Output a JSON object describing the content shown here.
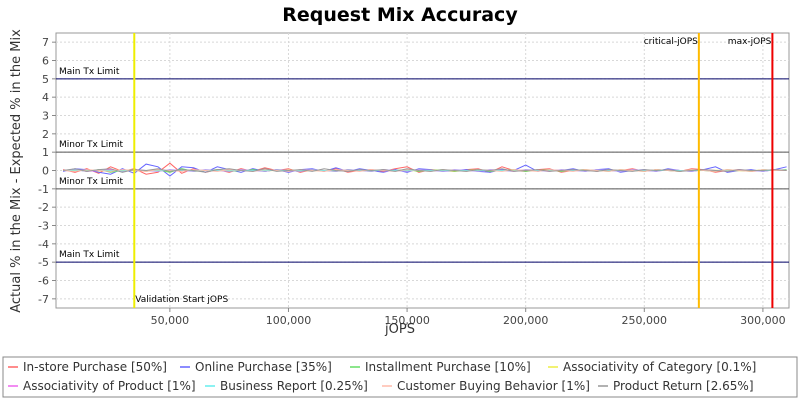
{
  "chart_data": {
    "type": "line",
    "title": "Request Mix Accuracy",
    "xlabel": "jOPS",
    "ylabel": "Actual % in the Mix - Expected % in the Mix",
    "xlim": [
      2000,
      311000
    ],
    "ylim": [
      -7.5,
      7.5
    ],
    "x_ticks": [
      50000,
      100000,
      150000,
      200000,
      250000,
      300000
    ],
    "x_tick_labels": [
      "50,000",
      "100,000",
      "150,000",
      "200,000",
      "250,000",
      "300,000"
    ],
    "y_ticks": [
      -7,
      -6,
      -5,
      -4,
      -3,
      -2,
      -1,
      0,
      1,
      2,
      3,
      4,
      5,
      6,
      7
    ],
    "y_tick_labels": [
      "-7",
      "-6",
      "-5",
      "-4",
      "-3",
      "-2",
      "-1",
      "0",
      "1",
      "2",
      "3",
      "4",
      "5",
      "6",
      "7"
    ],
    "grid": true,
    "legend_position": "bottom",
    "x": [
      5000,
      10000,
      15000,
      20000,
      25000,
      30000,
      35000,
      40000,
      45000,
      50000,
      55000,
      60000,
      65000,
      70000,
      75000,
      80000,
      85000,
      90000,
      95000,
      100000,
      105000,
      110000,
      115000,
      120000,
      125000,
      130000,
      135000,
      140000,
      145000,
      150000,
      155000,
      160000,
      165000,
      170000,
      175000,
      180000,
      185000,
      190000,
      195000,
      200000,
      205000,
      210000,
      215000,
      220000,
      225000,
      230000,
      235000,
      240000,
      245000,
      250000,
      255000,
      260000,
      265000,
      270000,
      275000,
      280000,
      285000,
      290000,
      295000,
      300000,
      305000,
      310000
    ],
    "series": [
      {
        "name": "In-store Purchase [50%]",
        "color": "#ff6666",
        "values": [
          0.05,
          -0.1,
          0.1,
          -0.15,
          0.2,
          -0.05,
          0.1,
          -0.2,
          -0.1,
          0.4,
          -0.15,
          0.1,
          -0.1,
          0.05,
          -0.1,
          0.1,
          -0.05,
          0.15,
          0.0,
          0.1,
          -0.1,
          0.05,
          -0.05,
          0.1,
          -0.1,
          0.0,
          0.05,
          -0.05,
          0.1,
          0.2,
          -0.1,
          0.05,
          0.0,
          -0.05,
          0.05,
          0.1,
          -0.1,
          0.2,
          0.0,
          -0.05,
          0.05,
          0.1,
          -0.1,
          0.0,
          0.05,
          -0.05,
          0.05,
          0.0,
          0.1,
          -0.05,
          0.05,
          0.0,
          -0.05,
          0.1,
          0.05,
          -0.1,
          0.0,
          0.05,
          -0.05,
          0.0,
          0.05,
          0.0
        ]
      },
      {
        "name": "Online Purchase [35%]",
        "color": "#6666ff",
        "values": [
          -0.05,
          0.1,
          0.05,
          -0.1,
          -0.2,
          0.1,
          -0.15,
          0.35,
          0.2,
          -0.3,
          0.2,
          0.15,
          -0.1,
          0.2,
          0.05,
          -0.1,
          0.1,
          -0.05,
          0.05,
          -0.1,
          0.05,
          0.1,
          -0.05,
          0.15,
          -0.05,
          0.1,
          0.0,
          -0.1,
          0.05,
          -0.1,
          0.1,
          0.05,
          -0.05,
          0.0,
          0.05,
          -0.05,
          -0.1,
          0.05,
          0.0,
          0.3,
          -0.05,
          0.05,
          0.0,
          0.1,
          -0.05,
          0.05,
          0.1,
          -0.1,
          0.0,
          0.05,
          -0.05,
          0.1,
          0.0,
          -0.05,
          0.05,
          0.2,
          -0.1,
          0.0,
          0.05,
          -0.05,
          0.05,
          0.2
        ]
      },
      {
        "name": "Installment Purchase [10%]",
        "color": "#66dd66",
        "values": [
          0.0,
          0.05,
          -0.05,
          0.05,
          -0.1,
          0.0,
          0.05,
          -0.05,
          0.05,
          -0.1,
          0.1,
          -0.05,
          0.0,
          0.05,
          -0.05,
          0.0,
          0.05,
          -0.05,
          0.05,
          0.0,
          -0.05,
          0.05,
          0.0,
          -0.05,
          0.05,
          0.0,
          -0.05,
          0.05,
          0.0,
          0.05,
          -0.05,
          0.0,
          0.05,
          -0.05,
          0.0,
          0.05,
          -0.05,
          0.0,
          0.05,
          -0.05,
          0.0,
          0.05,
          -0.05,
          0.0,
          0.05,
          0.0,
          -0.05,
          0.05,
          0.0,
          -0.05,
          0.05,
          0.0,
          -0.05,
          0.05,
          0.0,
          -0.05,
          0.05,
          0.0,
          -0.05,
          0.05,
          0.0,
          0.05
        ]
      },
      {
        "name": "Associativity of Category [0.1%]",
        "color": "#eeee44",
        "values": [
          0.0,
          0.0,
          0.02,
          -0.02,
          0.0,
          0.01,
          -0.01,
          0.0,
          0.02,
          -0.02,
          0.0,
          0.01,
          0.0,
          -0.01,
          0.0,
          0.01,
          0.0,
          -0.01,
          0.0,
          0.01,
          0.0,
          -0.01,
          0.0,
          0.01,
          0.0,
          -0.01,
          0.0,
          0.01,
          0.0,
          -0.01,
          0.0,
          0.01,
          0.0,
          -0.01,
          0.0,
          0.01,
          0.0,
          -0.01,
          0.0,
          0.01,
          0.0,
          -0.01,
          0.0,
          0.01,
          0.0,
          -0.01,
          0.0,
          0.01,
          0.0,
          -0.01,
          0.0,
          0.01,
          0.0,
          -0.01,
          0.0,
          0.01,
          0.0,
          -0.01,
          0.0,
          0.01,
          0.0,
          0.0
        ]
      },
      {
        "name": "Associativity of Product [1%]",
        "color": "#ee66ee",
        "values": [
          0.0,
          0.05,
          -0.05,
          0.0,
          0.05,
          -0.05,
          0.05,
          0.0,
          -0.05,
          0.05,
          0.0,
          -0.05,
          0.05,
          0.0,
          -0.05,
          0.05,
          0.0,
          -0.05,
          0.05,
          0.0,
          -0.05,
          0.05,
          0.0,
          -0.05,
          0.05,
          0.0,
          -0.05,
          0.05,
          0.0,
          -0.05,
          0.05,
          0.0,
          -0.05,
          0.05,
          0.0,
          -0.05,
          0.05,
          0.0,
          -0.05,
          0.05,
          0.0,
          -0.05,
          0.05,
          0.0,
          -0.05,
          0.05,
          0.0,
          -0.05,
          0.05,
          0.0,
          -0.05,
          0.05,
          0.0,
          -0.05,
          0.05,
          0.0,
          -0.05,
          0.05,
          0.0,
          -0.05,
          0.05,
          0.0
        ]
      },
      {
        "name": "Business Report [0.25%]",
        "color": "#66eeee",
        "values": [
          0.0,
          0.02,
          -0.02,
          0.02,
          0.0,
          -0.02,
          0.02,
          0.0,
          -0.02,
          0.02,
          0.0,
          -0.02,
          0.02,
          0.0,
          -0.02,
          0.02,
          0.0,
          -0.02,
          0.02,
          0.0,
          -0.02,
          0.02,
          0.0,
          -0.02,
          0.02,
          0.0,
          -0.02,
          0.02,
          0.0,
          -0.02,
          0.02,
          0.0,
          -0.02,
          0.02,
          0.0,
          -0.02,
          0.02,
          0.0,
          -0.02,
          0.02,
          0.0,
          -0.02,
          0.02,
          0.0,
          -0.02,
          0.02,
          0.0,
          -0.02,
          0.02,
          0.0,
          -0.02,
          0.02,
          0.0,
          -0.02,
          0.02,
          0.0,
          -0.02,
          0.02,
          0.0,
          -0.02,
          0.02,
          0.0
        ]
      },
      {
        "name": "Customer Buying Behavior [1%]",
        "color": "#ffbbaa",
        "values": [
          0.0,
          -0.05,
          0.05,
          0.0,
          -0.05,
          0.05,
          0.0,
          -0.05,
          0.05,
          0.0,
          -0.05,
          0.05,
          0.0,
          -0.05,
          0.05,
          0.0,
          -0.05,
          0.05,
          0.0,
          -0.05,
          0.05,
          0.0,
          -0.05,
          0.05,
          0.0,
          -0.05,
          0.05,
          0.0,
          -0.05,
          0.05,
          0.0,
          -0.05,
          0.05,
          0.0,
          -0.05,
          0.05,
          0.0,
          -0.05,
          0.05,
          0.0,
          -0.05,
          0.05,
          0.0,
          -0.05,
          0.05,
          0.0,
          -0.05,
          0.05,
          0.0,
          -0.05,
          0.05,
          0.0,
          -0.05,
          0.05,
          0.0,
          -0.05,
          0.05,
          0.0,
          -0.05,
          0.05,
          0.0,
          0.0
        ]
      },
      {
        "name": "Product Return [2.65%]",
        "color": "#999999",
        "values": [
          0.0,
          0.1,
          -0.05,
          0.05,
          0.1,
          -0.1,
          0.05,
          0.0,
          0.1,
          -0.05,
          0.05,
          0.0,
          -0.1,
          0.05,
          0.1,
          0.0,
          -0.05,
          0.1,
          -0.05,
          0.0,
          0.05,
          -0.05,
          0.1,
          0.0,
          -0.05,
          0.05,
          0.0,
          0.05,
          -0.05,
          0.1,
          0.0,
          -0.05,
          0.05,
          0.0,
          -0.05,
          0.05,
          0.0,
          0.1,
          -0.05,
          0.0,
          0.05,
          -0.05,
          0.0,
          0.05,
          0.0,
          -0.05,
          0.05,
          0.0,
          -0.05,
          0.05,
          0.0,
          0.05,
          -0.05,
          0.0,
          0.05,
          0.0,
          -0.05,
          0.05,
          0.0,
          0.0,
          0.05,
          0.0
        ]
      }
    ],
    "limit_lines": [
      {
        "label": "Main Tx Limit",
        "y": 5,
        "color": "#000066"
      },
      {
        "label": "Minor Tx Limit",
        "y": 1,
        "color": "#555555"
      },
      {
        "label": "Minor Tx Limit",
        "y": -1,
        "color": "#555555"
      },
      {
        "label": "Main Tx Limit",
        "y": -5,
        "color": "#000066"
      }
    ],
    "vertical_markers": [
      {
        "label": "Validation Start jOPS",
        "x": 35000,
        "color": "#eeee00"
      },
      {
        "label": "critical-jOPS",
        "x": 273000,
        "color": "#ffbb00"
      },
      {
        "label": "max-jOPS",
        "x": 304000,
        "color": "#ee0000"
      }
    ]
  }
}
